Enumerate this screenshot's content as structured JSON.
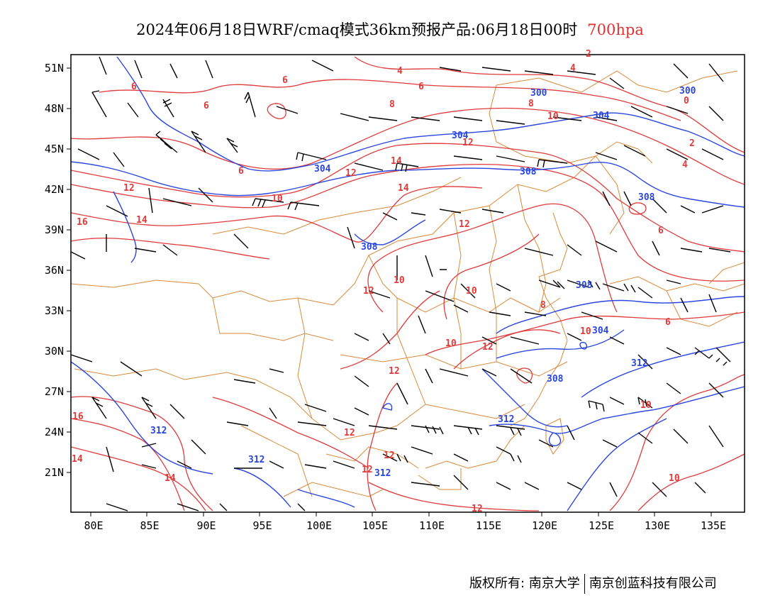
{
  "title": {
    "main": "2024年06月18日WRF/cmaq模式36km预报产品:06月18日00时",
    "level": "700hpa"
  },
  "colors": {
    "height_contour": "#2a46e0",
    "temperature_contour": "#e03a3a",
    "boundary": "#d98a3a",
    "wind_barb": "#000000"
  },
  "axes": {
    "lon_labels": [
      "80E",
      "85E",
      "90E",
      "95E",
      "100E",
      "105E",
      "110E",
      "115E",
      "120E",
      "125E",
      "130E",
      "135E"
    ],
    "lat_labels": [
      "51N",
      "48N",
      "45N",
      "42N",
      "39N",
      "36N",
      "33N",
      "30N",
      "27N",
      "24N",
      "21N"
    ]
  },
  "contour_labels": {
    "height": [
      "300",
      "300",
      "304",
      "304",
      "304",
      "308",
      "308",
      "308",
      "308",
      "304",
      "312",
      "308",
      "312",
      "312",
      "312",
      "312"
    ],
    "temperature": [
      "4",
      "4",
      "2",
      "4",
      "6",
      "6",
      "6",
      "8",
      "10",
      "12",
      "6",
      "12",
      "14",
      "16",
      "14",
      "12",
      "10",
      "14",
      "8",
      "12",
      "10",
      "12",
      "10",
      "6",
      "8",
      "10",
      "12",
      "6",
      "10",
      "12",
      "12",
      "12",
      "16",
      "14",
      "14",
      "12",
      "10",
      "10",
      "12",
      "6",
      "2",
      "0"
    ]
  },
  "footer": {
    "left": "版权所有: 南京大学",
    "right": "南京创蓝科技有限公司"
  }
}
